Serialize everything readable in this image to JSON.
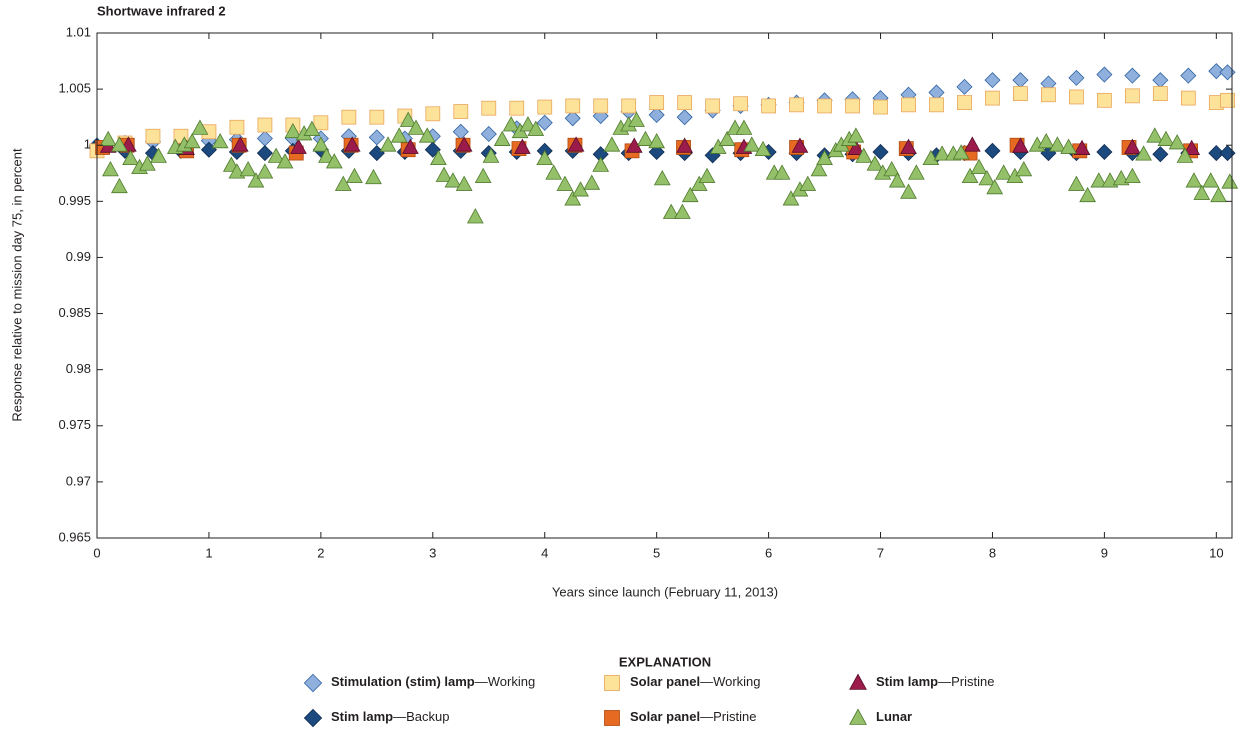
{
  "chart_data": {
    "type": "scatter",
    "title": "Shortwave infrared 2",
    "x_label": "Years since launch (February 11, 2013)",
    "y_label": "Response relative to mission day 75, in percent",
    "legend_title": "EXPLANATION",
    "xlim": [
      0,
      10.14
    ],
    "xticks": [
      0,
      1,
      2,
      3,
      4,
      5,
      6,
      7,
      8,
      9,
      10
    ],
    "ylim": [
      0.965,
      1.01
    ],
    "yticks": [
      0.965,
      0.97,
      0.975,
      0.98,
      0.985,
      0.99,
      0.995,
      1,
      1.005,
      1.01
    ],
    "series": [
      {
        "name": "Stimulation (stim) lamp—Working",
        "marker": "diamond",
        "color": "#8fb0dc",
        "edgecolor": "#2f63a3",
        "x": [
          0,
          0.25,
          0.5,
          0.75,
          1,
          1.25,
          1.5,
          1.75,
          2,
          2.25,
          2.5,
          2.75,
          3,
          3.25,
          3.5,
          3.75,
          4,
          4.25,
          4.5,
          4.75,
          5,
          5.25,
          5.5,
          5.75,
          6,
          6.25,
          6.5,
          6.75,
          7,
          7.25,
          7.5,
          7.75,
          8,
          8.25,
          8.5,
          8.75,
          9,
          9.25,
          9.5,
          9.75,
          10,
          10.1
        ],
        "values": [
          1.0,
          1.0002,
          1.0003,
          1.0003,
          1.0004,
          1.0005,
          1.0006,
          1.0006,
          1.0006,
          1.0008,
          1.0007,
          1.0006,
          1.0008,
          1.0012,
          1.001,
          1.0015,
          1.002,
          1.0024,
          1.0026,
          1.003,
          1.0027,
          1.0025,
          1.0031,
          1.0035,
          1.0036,
          1.0038,
          1.004,
          1.0041,
          1.0042,
          1.0045,
          1.0047,
          1.0052,
          1.0058,
          1.0058,
          1.0055,
          1.006,
          1.0063,
          1.0062,
          1.0058,
          1.0062,
          1.0066,
          1.0065
        ]
      },
      {
        "name": "Solar panel—Working",
        "marker": "square",
        "color": "#fde29a",
        "edgecolor": "#e8a65a",
        "x": [
          0,
          0.25,
          0.5,
          0.75,
          1,
          1.25,
          1.5,
          1.75,
          2,
          2.25,
          2.5,
          2.75,
          3,
          3.25,
          3.5,
          3.75,
          4,
          4.25,
          4.5,
          4.75,
          5,
          5.25,
          5.5,
          5.75,
          6,
          6.25,
          6.5,
          6.75,
          7,
          7.25,
          7.5,
          7.75,
          8,
          8.25,
          8.5,
          8.75,
          9,
          9.25,
          9.5,
          9.75,
          10,
          10.1
        ],
        "values": [
          0.9995,
          1.0002,
          1.0008,
          1.0008,
          1.0012,
          1.0016,
          1.0018,
          1.0018,
          1.002,
          1.0025,
          1.0025,
          1.0026,
          1.0028,
          1.003,
          1.0033,
          1.0033,
          1.0034,
          1.0035,
          1.0035,
          1.0035,
          1.0038,
          1.0038,
          1.0035,
          1.0037,
          1.0035,
          1.0036,
          1.0035,
          1.0035,
          1.0034,
          1.0036,
          1.0036,
          1.0038,
          1.0042,
          1.0046,
          1.0045,
          1.0043,
          1.004,
          1.0044,
          1.0046,
          1.0042,
          1.0038,
          1.004
        ]
      },
      {
        "name": "Stim lamp—Pristine",
        "marker": "triangle",
        "color": "#9b1b4b",
        "edgecolor": "#5a0e2a",
        "x": [
          0.1,
          0.28,
          0.8,
          1.28,
          1.8,
          2.28,
          2.8,
          3.28,
          3.8,
          4.28,
          4.8,
          5.25,
          5.78,
          6.28,
          6.78,
          7.25,
          7.82,
          8.25,
          8.8,
          9.25,
          9.78
        ],
        "values": [
          0.9999,
          1.0,
          0.9997,
          1.0,
          0.9998,
          1.0,
          0.9998,
          1.0,
          0.9998,
          1.0,
          0.9999,
          0.9999,
          0.9998,
          0.9999,
          0.9997,
          0.9998,
          1.0,
          0.9999,
          0.9997,
          0.9998,
          0.9997
        ]
      },
      {
        "name": "Stim lamp—Backup",
        "marker": "diamond",
        "color": "#1c4a7e",
        "edgecolor": "#0f2c52",
        "x": [
          0,
          0.25,
          0.5,
          0.75,
          1,
          1.25,
          1.5,
          1.75,
          2,
          2.25,
          2.5,
          2.75,
          3,
          3.25,
          3.5,
          3.75,
          4,
          4.25,
          4.5,
          4.75,
          5,
          5.25,
          5.5,
          5.75,
          6,
          6.25,
          6.5,
          6.75,
          7,
          7.25,
          7.5,
          7.75,
          8,
          8.25,
          8.5,
          8.75,
          9,
          9.25,
          9.5,
          9.75,
          10,
          10.1
        ],
        "values": [
          0.9999,
          0.9995,
          0.9993,
          0.9995,
          0.9996,
          0.9994,
          0.9993,
          0.9995,
          0.9996,
          0.9995,
          0.9993,
          0.9994,
          0.9996,
          0.9995,
          0.9993,
          0.9994,
          0.9995,
          0.9995,
          0.9992,
          0.9993,
          0.9994,
          0.9993,
          0.9991,
          0.9993,
          0.9994,
          0.9993,
          0.9991,
          0.9992,
          0.9994,
          0.9993,
          0.9991,
          0.9993,
          0.9995,
          0.9994,
          0.9993,
          0.9993,
          0.9994,
          0.9993,
          0.9992,
          0.9993,
          0.9993,
          0.9993
        ]
      },
      {
        "name": "Solar panel—Pristine",
        "marker": "square",
        "color": "#e66a22",
        "edgecolor": "#b04a10",
        "x": [
          0.05,
          0.27,
          0.8,
          1.27,
          1.78,
          2.27,
          2.78,
          3.27,
          3.77,
          4.27,
          4.78,
          5.24,
          5.76,
          6.25,
          6.76,
          7.23,
          7.8,
          8.22,
          8.78,
          9.22,
          9.77
        ],
        "values": [
          0.9998,
          1.0,
          0.9995,
          1.0,
          0.9993,
          1.0,
          0.9996,
          1.0,
          0.9997,
          1.0,
          0.9995,
          0.9998,
          0.9996,
          0.9998,
          0.9994,
          0.9997,
          0.9993,
          1.0,
          0.9995,
          0.9998,
          0.9995
        ]
      },
      {
        "name": "Lunar",
        "marker": "triangle",
        "color": "#93c069",
        "edgecolor": "#4f7a2c",
        "x": [
          0.1,
          0.12,
          0.2,
          0.2,
          0.3,
          0.38,
          0.45,
          0.55,
          0.7,
          0.78,
          0.85,
          0.92,
          1.1,
          1.2,
          1.25,
          1.35,
          1.42,
          1.5,
          1.6,
          1.68,
          1.75,
          1.85,
          1.92,
          2.0,
          2.05,
          2.12,
          2.2,
          2.3,
          2.47,
          2.6,
          2.7,
          2.78,
          2.85,
          2.95,
          3.05,
          3.1,
          3.18,
          3.28,
          3.38,
          3.45,
          3.52,
          3.62,
          3.7,
          3.78,
          3.85,
          3.92,
          4.0,
          4.08,
          4.18,
          4.25,
          4.32,
          4.42,
          4.5,
          4.6,
          4.68,
          4.75,
          4.82,
          4.9,
          5.0,
          5.05,
          5.13,
          5.23,
          5.3,
          5.38,
          5.45,
          5.55,
          5.63,
          5.7,
          5.78,
          5.85,
          5.95,
          6.05,
          6.12,
          6.2,
          6.28,
          6.35,
          6.45,
          6.5,
          6.6,
          6.65,
          6.72,
          6.78,
          6.85,
          6.95,
          7.02,
          7.1,
          7.15,
          7.25,
          7.32,
          7.45,
          7.55,
          7.65,
          7.72,
          7.8,
          7.88,
          7.95,
          8.02,
          8.1,
          8.2,
          8.28,
          8.4,
          8.48,
          8.58,
          8.68,
          8.75,
          8.85,
          8.95,
          9.05,
          9.15,
          9.25,
          9.35,
          9.45,
          9.55,
          9.65,
          9.72,
          9.8,
          9.87,
          9.95,
          10.02,
          10.12
        ],
        "values": [
          1.0005,
          0.9978,
          0.9963,
          1.0,
          0.9988,
          0.998,
          0.9983,
          0.999,
          0.9998,
          1.0,
          1.0003,
          1.0015,
          1.0003,
          0.9982,
          0.9976,
          0.9978,
          0.9968,
          0.9976,
          0.999,
          0.9985,
          1.0012,
          1.001,
          1.0014,
          1.0,
          0.999,
          0.9985,
          0.9965,
          0.9972,
          0.9971,
          1.0,
          1.0008,
          1.0022,
          1.0015,
          1.0008,
          0.9988,
          0.9973,
          0.9968,
          0.9965,
          0.9936,
          0.9972,
          0.999,
          1.0005,
          1.0018,
          1.0012,
          1.0018,
          1.0014,
          0.9988,
          0.9975,
          0.9965,
          0.9952,
          0.996,
          0.9966,
          0.9982,
          1.0,
          1.0015,
          1.0018,
          1.0022,
          1.0005,
          1.0003,
          0.997,
          0.994,
          0.994,
          0.9955,
          0.9965,
          0.9972,
          0.9998,
          1.0005,
          1.0015,
          1.0015,
          1.0,
          0.9996,
          0.9975,
          0.9975,
          0.9952,
          0.996,
          0.9965,
          0.9978,
          0.9988,
          0.9995,
          1.0,
          1.0005,
          1.0008,
          0.999,
          0.9983,
          0.9975,
          0.9978,
          0.9968,
          0.9958,
          0.9975,
          0.9988,
          0.9992,
          0.9992,
          0.9993,
          0.9972,
          0.998,
          0.997,
          0.9962,
          0.9975,
          0.9972,
          0.9978,
          1.0,
          1.0003,
          1.0,
          0.9998,
          0.9965,
          0.9955,
          0.9968,
          0.9968,
          0.997,
          0.9972,
          0.9992,
          1.0008,
          1.0005,
          1.0002,
          0.999,
          0.9968,
          0.9957,
          0.9968,
          0.9955,
          0.9967
        ]
      }
    ]
  }
}
